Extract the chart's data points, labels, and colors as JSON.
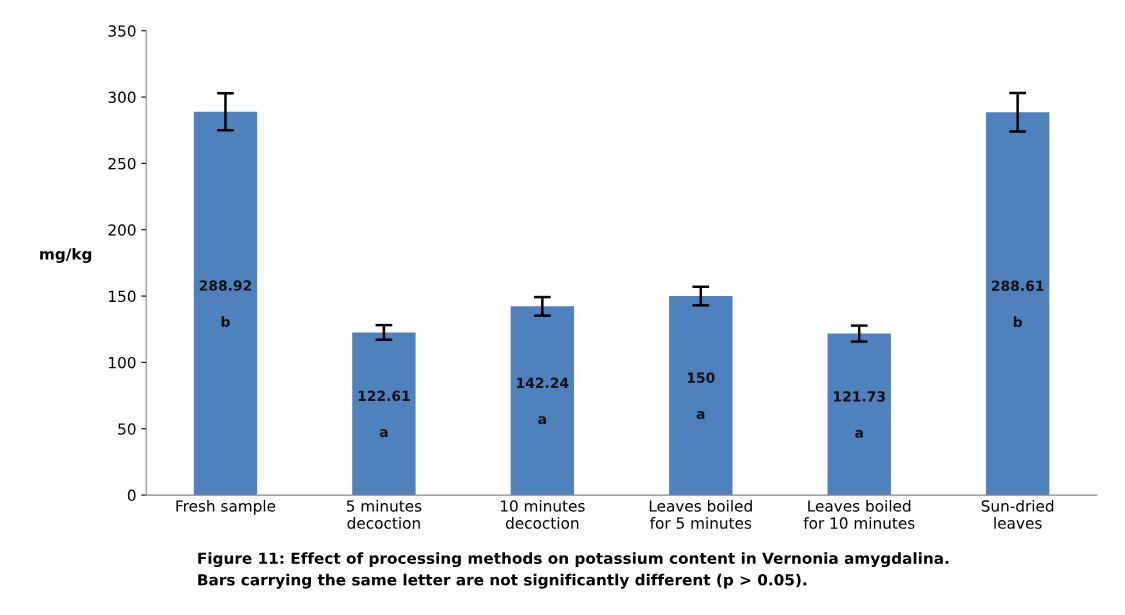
{
  "chart_data": {
    "type": "bar",
    "ylabel": "mg/kg",
    "categories": [
      "Fresh sample",
      "5 minutes\ndecoction",
      "10 minutes\ndecoction",
      "Leaves boiled\nfor 5 minutes",
      "Leaves boiled\nfor 10 minutes",
      "Sun-dried\nleaves"
    ],
    "values": [
      288.92,
      122.61,
      142.24,
      150,
      121.73,
      288.61
    ],
    "errors": [
      14,
      5.5,
      7,
      7,
      6,
      14.5
    ],
    "color": "#4f81bd",
    "data_labels": true,
    "ylim": [
      0,
      350
    ],
    "yticks": [
      0,
      50,
      100,
      150,
      200,
      250,
      300,
      350
    ],
    "grid": false,
    "annotations": [
      "b",
      "a",
      "a",
      "a",
      "a",
      "b",
      "Figure 11: Effect of processing methods on potassium content in Vernonia amygdalina.",
      "Bars carrying the same letter are not significantly different (p > 0.05)."
    ]
  }
}
